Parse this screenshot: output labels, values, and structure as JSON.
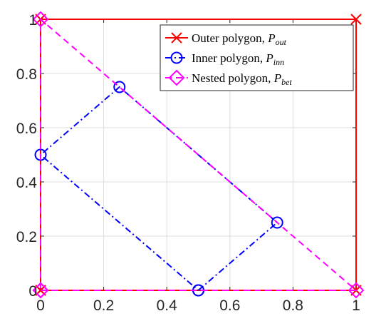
{
  "chart_data": {
    "type": "line",
    "xlim": [
      0,
      1
    ],
    "ylim": [
      0,
      1
    ],
    "grid": true,
    "legend_position": "top-right",
    "x_ticks": [
      "0",
      "0.2",
      "0.4",
      "0.6",
      "0.8",
      "1"
    ],
    "y_ticks": [
      "0",
      "0.2",
      "0.4",
      "0.6",
      "0.8",
      "1"
    ],
    "x_tick_values": [
      0,
      0.2,
      0.4,
      0.6,
      0.8,
      1
    ],
    "y_tick_values": [
      0,
      0.2,
      0.4,
      0.6,
      0.8,
      1
    ],
    "series": [
      {
        "name": "Outer polygon, ",
        "math": {
          "base": "P",
          "sub": "out"
        },
        "color": "#ff0000",
        "line_style": "solid",
        "marker": "x",
        "x": [
          0,
          1,
          1,
          0,
          0
        ],
        "y": [
          0,
          0,
          1,
          1,
          0
        ]
      },
      {
        "name": "Inner polygon, ",
        "math": {
          "base": "P",
          "sub": "inn"
        },
        "color": "#0000ff",
        "line_style": "dashdot",
        "marker": "circle",
        "x": [
          0.5,
          0.75,
          0.25,
          0,
          0.5
        ],
        "y": [
          0,
          0.25,
          0.75,
          0.5,
          0
        ]
      },
      {
        "name": "Nested polygon, ",
        "math": {
          "base": "P",
          "sub": "bet"
        },
        "color": "#ff00ff",
        "line_style": "dashed",
        "marker": "diamond",
        "x": [
          0,
          1,
          0,
          0
        ],
        "y": [
          0,
          0,
          1,
          0
        ]
      }
    ]
  }
}
